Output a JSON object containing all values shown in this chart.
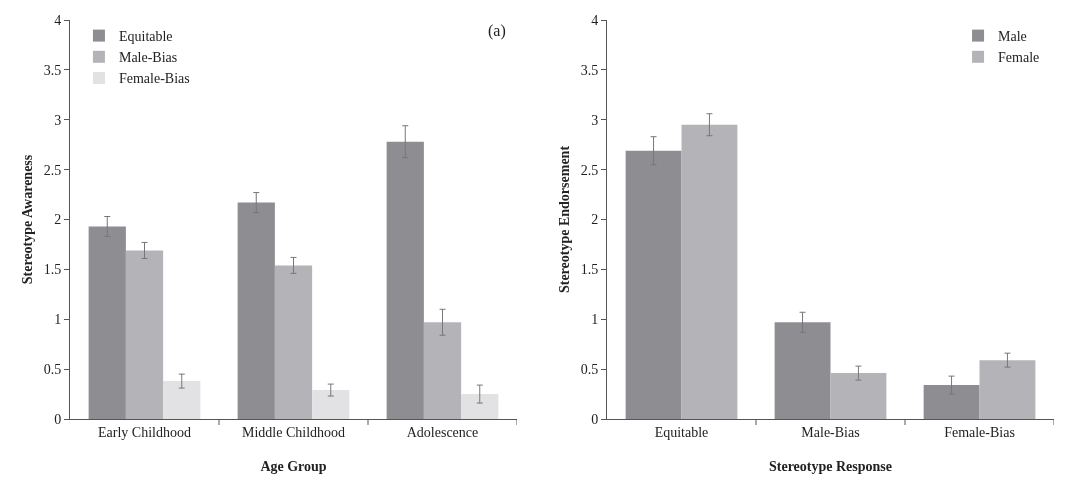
{
  "chart_data": [
    {
      "type": "bar",
      "xlabel": "Age Group",
      "ylabel": "Stereotype Awareness",
      "annotations": [
        "(a)"
      ],
      "categories": [
        "Early Childhood",
        "Middle Childhood",
        "Adolescence"
      ],
      "series": [
        {
          "name": "Equitable",
          "color": "#8e8e92",
          "values": [
            1.93,
            2.17,
            2.78
          ],
          "errors": [
            0.1,
            0.1,
            0.16
          ]
        },
        {
          "name": "Male-Bias",
          "color": "#b4b4b8",
          "values": [
            1.69,
            1.54,
            0.97
          ],
          "errors": [
            0.08,
            0.08,
            0.13
          ]
        },
        {
          "name": "Female-Bias",
          "color": "#e2e2e4",
          "values": [
            0.38,
            0.29,
            0.25
          ],
          "errors": [
            0.07,
            0.06,
            0.09
          ]
        }
      ],
      "ylim": [
        0,
        4
      ],
      "yticks": [
        0,
        0.5,
        1,
        1.5,
        2,
        2.5,
        3,
        3.5,
        4
      ],
      "grid": false,
      "legend": "top left"
    },
    {
      "type": "bar",
      "xlabel": "Stereotype Response",
      "ylabel": "Stereotype Endorsement",
      "categories": [
        "Equitable",
        "Male-Bias",
        "Female-Bias"
      ],
      "series": [
        {
          "name": "Male",
          "color": "#8e8e92",
          "values": [
            2.69,
            0.97,
            0.34
          ],
          "errors": [
            0.14,
            0.1,
            0.09
          ]
        },
        {
          "name": "Female",
          "color": "#b4b4b8",
          "values": [
            2.95,
            0.46,
            0.59
          ],
          "errors": [
            0.11,
            0.07,
            0.07
          ]
        }
      ],
      "ylim": [
        0,
        4
      ],
      "yticks": [
        0,
        0.5,
        1,
        1.5,
        2,
        2.5,
        3,
        3.5,
        4
      ],
      "grid": false,
      "legend": "top right"
    }
  ]
}
